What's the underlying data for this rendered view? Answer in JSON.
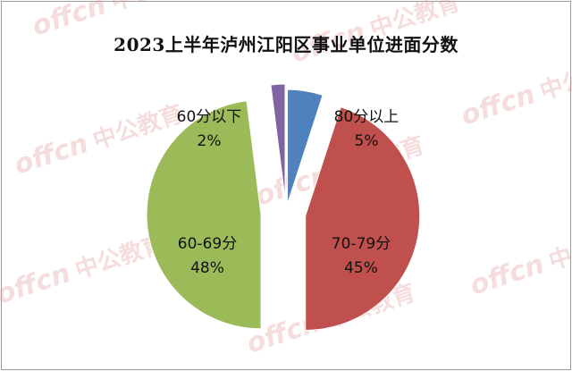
{
  "title": "2023上半年泸州江阳区事业单位进面分数",
  "watermark": {
    "text_latin": "offcn",
    "text_cn": "中公教育",
    "color": "#e8a0a0"
  },
  "chart_data": {
    "type": "pie",
    "title": "2023上半年泸州江阳区事业单位进面分数",
    "slices": [
      {
        "label": "80分以上",
        "value": 5,
        "value_label": "5%",
        "color": "#4f81bd"
      },
      {
        "label": "70-79分",
        "value": 45,
        "value_label": "45%",
        "color": "#c0504d"
      },
      {
        "label": "60-69分",
        "value": 48,
        "value_label": "48%",
        "color": "#9bbb59"
      },
      {
        "label": "60分以下",
        "value": 2,
        "value_label": "2%",
        "color": "#8064a2"
      }
    ],
    "legend": "none",
    "exploded": true
  }
}
